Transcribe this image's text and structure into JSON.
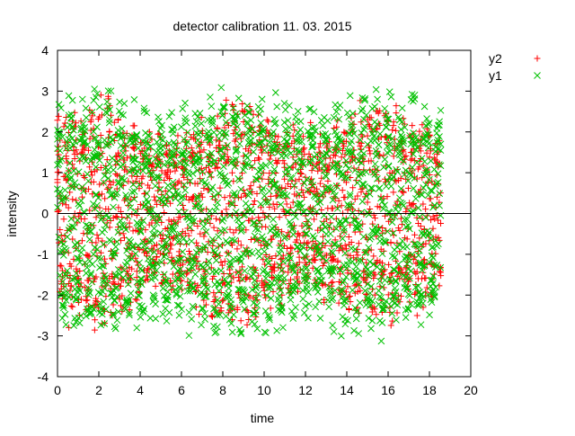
{
  "chart_data": {
    "type": "scatter",
    "title": "detector calibration 11. 03. 2015",
    "xlabel": "time",
    "ylabel": "intensity",
    "xlim": [
      0,
      20
    ],
    "ylim": [
      -4,
      4
    ],
    "xticks": [
      "0",
      "2",
      "4",
      "6",
      "8",
      "10",
      "12",
      "14",
      "16",
      "18",
      "20"
    ],
    "yticks": [
      "-4",
      "-3",
      "-2",
      "-1",
      "0",
      "1",
      "2",
      "3",
      "4"
    ],
    "grid": false,
    "zero_line": true,
    "legend": "top-right, outside plot",
    "x_step": 0.06,
    "x_count": 310,
    "series": [
      {
        "name": "y2",
        "marker": "plus",
        "color": "#ff0000",
        "generator": {
          "k": 1.1,
          "base": 2.4,
          "env": 0.18,
          "env2": 0.35,
          "seed": 7
        }
      },
      {
        "name": "y1",
        "marker": "cross",
        "color": "#00c000",
        "generator": {
          "k": 0.73,
          "base": 2.9,
          "env": 0.1,
          "env2": 0.55,
          "seed": 3
        }
      }
    ]
  }
}
